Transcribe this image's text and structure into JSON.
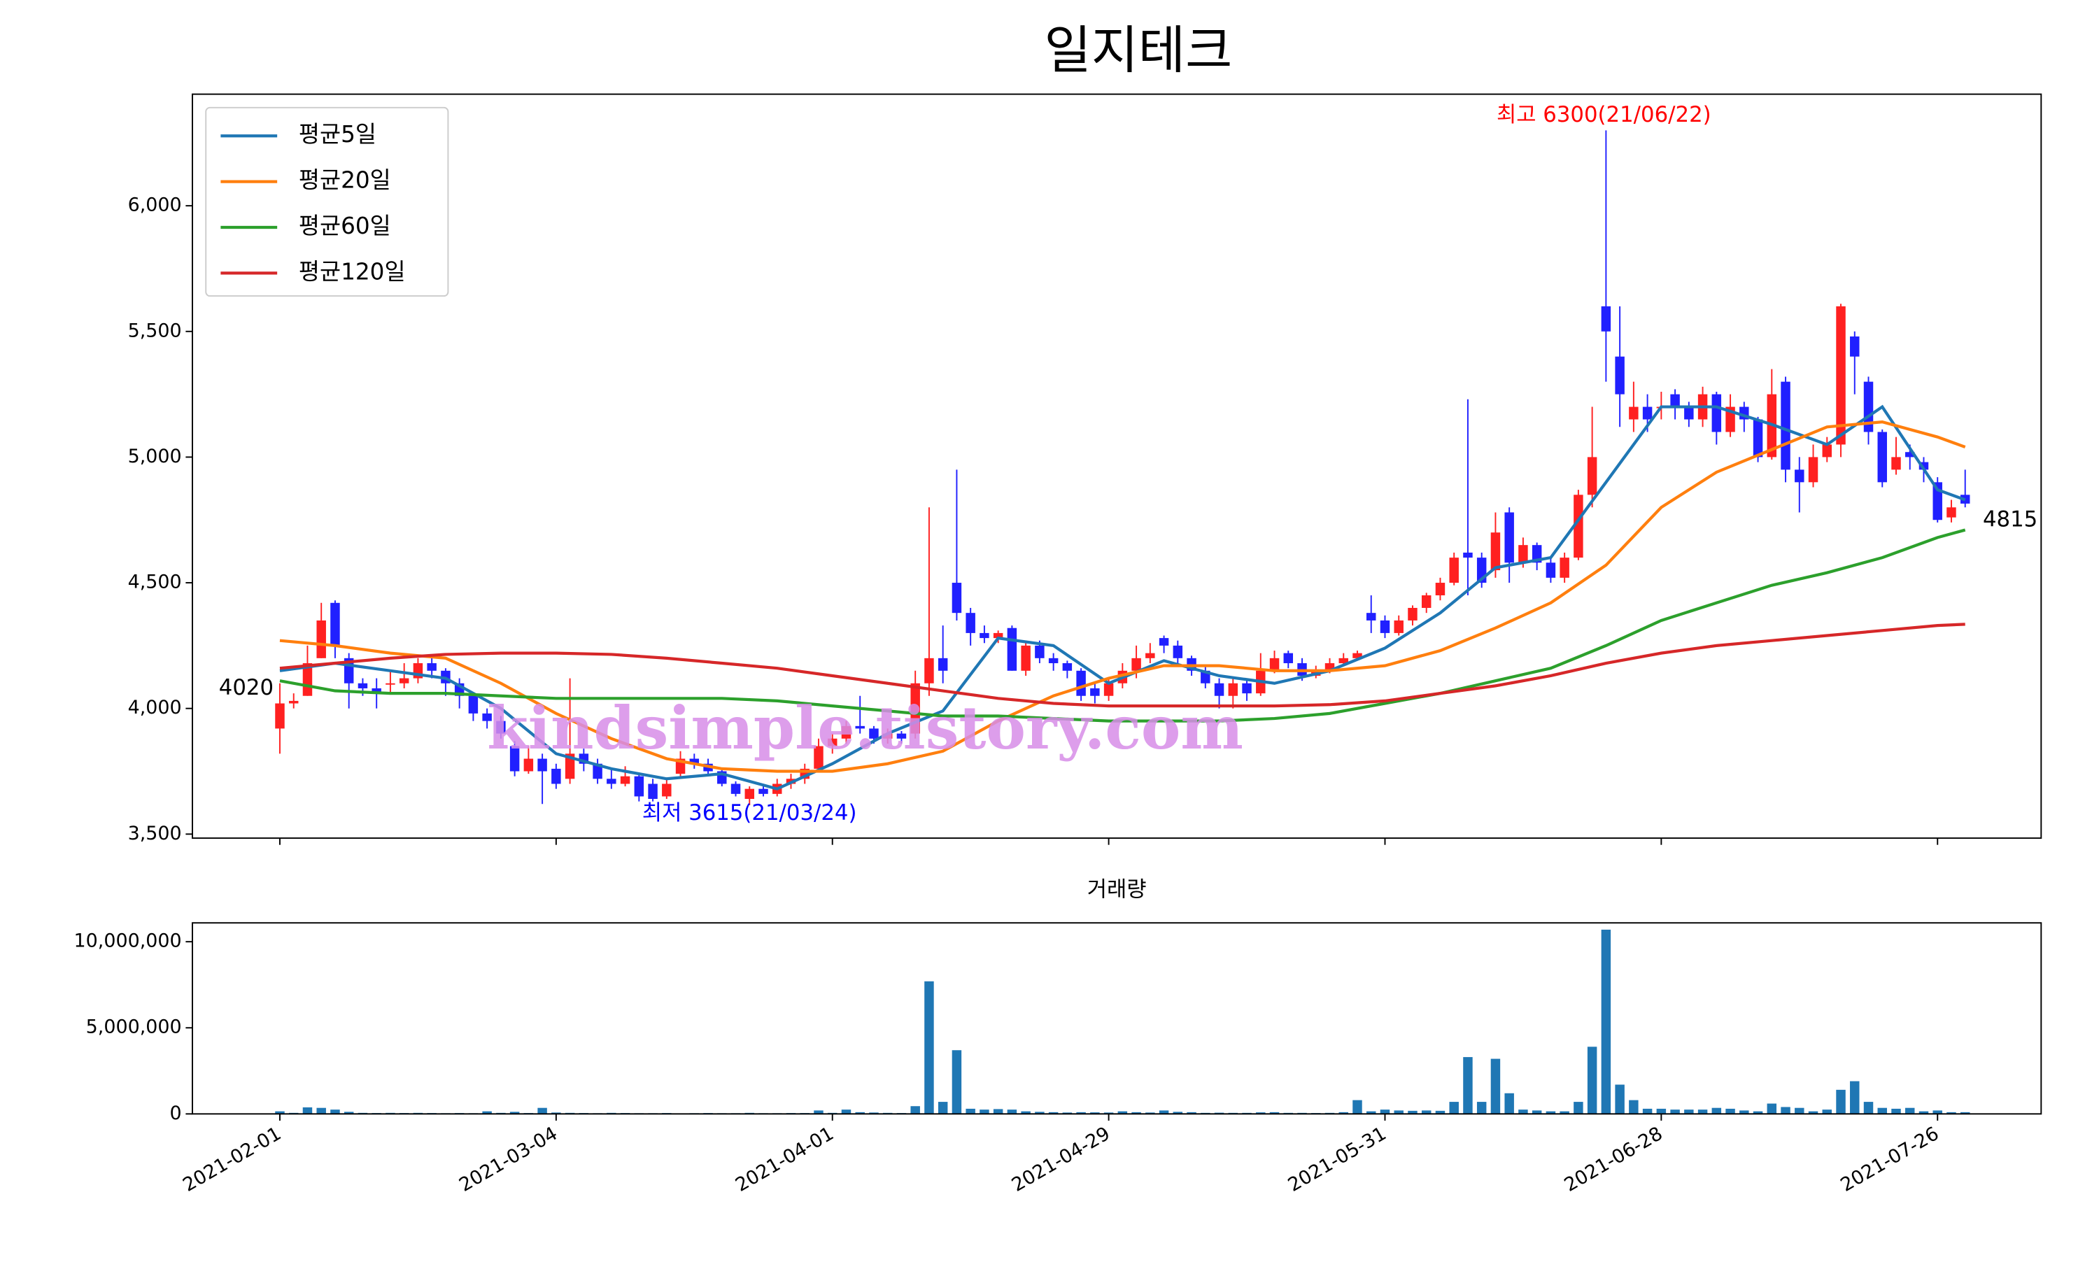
{
  "chart_data": [
    {
      "type": "candlestick",
      "title": "일지테크",
      "xlim": [
        -6.33,
        127.5
      ],
      "ylim": [
        3484,
        6444
      ],
      "yticks": [
        {
          "value": 3500,
          "label": "3,500"
        },
        {
          "value": 4000,
          "label": "4,000"
        },
        {
          "value": 4500,
          "label": "4,500"
        },
        {
          "value": 5000,
          "label": "5,000"
        },
        {
          "value": 5500,
          "label": "5,500"
        },
        {
          "value": 6000,
          "label": "6,000"
        }
      ],
      "up_color": "#ff2020",
      "down_color": "#2020ff",
      "ohlc": [
        [
          3920,
          4100,
          3820,
          4020
        ],
        [
          4020,
          4060,
          4000,
          4030
        ],
        [
          4050,
          4250,
          4050,
          4180
        ],
        [
          4200,
          4420,
          4200,
          4350
        ],
        [
          4420,
          4430,
          4200,
          4250
        ],
        [
          4200,
          4220,
          4000,
          4100
        ],
        [
          4100,
          4120,
          4050,
          4080
        ],
        [
          4080,
          4120,
          4000,
          4060
        ],
        [
          4100,
          4150,
          4060,
          4100
        ],
        [
          4100,
          4180,
          4080,
          4120
        ],
        [
          4120,
          4200,
          4100,
          4180
        ],
        [
          4180,
          4200,
          4120,
          4150
        ],
        [
          4150,
          4160,
          4050,
          4100
        ],
        [
          4100,
          4120,
          4000,
          4050
        ],
        [
          4050,
          4060,
          3950,
          3980
        ],
        [
          3980,
          4000,
          3920,
          3950
        ],
        [
          3950,
          3970,
          3880,
          3900
        ],
        [
          3850,
          3870,
          3730,
          3750
        ],
        [
          3750,
          3850,
          3740,
          3800
        ],
        [
          3800,
          3820,
          3620,
          3750
        ],
        [
          3760,
          3780,
          3680,
          3700
        ],
        [
          3720,
          4120,
          3700,
          3820
        ],
        [
          3820,
          3840,
          3750,
          3780
        ],
        [
          3780,
          3800,
          3700,
          3720
        ],
        [
          3720,
          3760,
          3680,
          3700
        ],
        [
          3700,
          3770,
          3690,
          3730
        ],
        [
          3730,
          3740,
          3630,
          3650
        ],
        [
          3700,
          3720,
          3630,
          3640
        ],
        [
          3650,
          3720,
          3640,
          3700
        ],
        [
          3740,
          3830,
          3730,
          3800
        ],
        [
          3800,
          3820,
          3760,
          3780
        ],
        [
          3780,
          3800,
          3740,
          3750
        ],
        [
          3750,
          3760,
          3690,
          3700
        ],
        [
          3700,
          3710,
          3650,
          3660
        ],
        [
          3640,
          3690,
          3615,
          3680
        ],
        [
          3680,
          3690,
          3650,
          3660
        ],
        [
          3660,
          3720,
          3650,
          3700
        ],
        [
          3700,
          3740,
          3680,
          3720
        ],
        [
          3720,
          3780,
          3700,
          3760
        ],
        [
          3760,
          3880,
          3750,
          3850
        ],
        [
          3850,
          3900,
          3820,
          3880
        ],
        [
          3880,
          3950,
          3860,
          3930
        ],
        [
          3930,
          4050,
          3900,
          3920
        ],
        [
          3920,
          3930,
          3860,
          3880
        ],
        [
          3880,
          3920,
          3860,
          3900
        ],
        [
          3900,
          3910,
          3860,
          3880
        ],
        [
          3900,
          4150,
          3880,
          4100
        ],
        [
          4100,
          4800,
          4050,
          4200
        ],
        [
          4200,
          4330,
          4100,
          4150
        ],
        [
          4500,
          4950,
          4350,
          4380
        ],
        [
          4380,
          4400,
          4250,
          4300
        ],
        [
          4300,
          4330,
          4260,
          4280
        ],
        [
          4280,
          4310,
          4260,
          4300
        ],
        [
          4320,
          4330,
          4150,
          4150
        ],
        [
          4150,
          4270,
          4130,
          4250
        ],
        [
          4250,
          4270,
          4180,
          4200
        ],
        [
          4200,
          4220,
          4150,
          4180
        ],
        [
          4180,
          4190,
          4120,
          4150
        ],
        [
          4150,
          4160,
          4030,
          4050
        ],
        [
          4080,
          4100,
          4020,
          4050
        ],
        [
          4050,
          4120,
          4030,
          4100
        ],
        [
          4100,
          4180,
          4080,
          4150
        ],
        [
          4150,
          4250,
          4120,
          4200
        ],
        [
          4200,
          4260,
          4180,
          4220
        ],
        [
          4280,
          4290,
          4220,
          4250
        ],
        [
          4250,
          4270,
          4180,
          4200
        ],
        [
          4200,
          4210,
          4130,
          4150
        ],
        [
          4150,
          4170,
          4080,
          4100
        ],
        [
          4100,
          4120,
          4000,
          4050
        ],
        [
          4050,
          4120,
          4000,
          4100
        ],
        [
          4100,
          4110,
          4030,
          4060
        ],
        [
          4060,
          4220,
          4050,
          4150
        ],
        [
          4150,
          4230,
          4140,
          4200
        ],
        [
          4220,
          4230,
          4160,
          4180
        ],
        [
          4180,
          4200,
          4110,
          4130
        ],
        [
          4130,
          4170,
          4120,
          4150
        ],
        [
          4150,
          4200,
          4140,
          4180
        ],
        [
          4180,
          4220,
          4170,
          4200
        ],
        [
          4200,
          4230,
          4190,
          4220
        ],
        [
          4380,
          4450,
          4300,
          4350
        ],
        [
          4350,
          4370,
          4280,
          4300
        ],
        [
          4300,
          4370,
          4290,
          4350
        ],
        [
          4350,
          4410,
          4330,
          4400
        ],
        [
          4400,
          4460,
          4380,
          4450
        ],
        [
          4450,
          4520,
          4430,
          4500
        ],
        [
          4500,
          4620,
          4490,
          4600
        ],
        [
          4620,
          5230,
          4450,
          4600
        ],
        [
          4600,
          4620,
          4480,
          4500
        ],
        [
          4550,
          4780,
          4520,
          4700
        ],
        [
          4780,
          4800,
          4500,
          4580
        ],
        [
          4580,
          4680,
          4560,
          4650
        ],
        [
          4650,
          4660,
          4550,
          4580
        ],
        [
          4580,
          4600,
          4500,
          4520
        ],
        [
          4520,
          4620,
          4500,
          4600
        ],
        [
          4600,
          4870,
          4590,
          4850
        ],
        [
          4850,
          5200,
          4800,
          5000
        ],
        [
          5600,
          6300,
          5300,
          5500
        ],
        [
          5400,
          5600,
          5120,
          5250
        ],
        [
          5150,
          5300,
          5100,
          5200
        ],
        [
          5200,
          5250,
          5100,
          5150
        ],
        [
          5200,
          5260,
          5150,
          5200
        ],
        [
          5250,
          5270,
          5150,
          5200
        ],
        [
          5200,
          5220,
          5120,
          5150
        ],
        [
          5150,
          5280,
          5120,
          5250
        ],
        [
          5250,
          5260,
          5050,
          5100
        ],
        [
          5100,
          5250,
          5080,
          5200
        ],
        [
          5200,
          5220,
          5100,
          5150
        ],
        [
          5150,
          5160,
          4980,
          5000
        ],
        [
          5000,
          5350,
          4990,
          5250
        ],
        [
          5300,
          5320,
          4900,
          4950
        ],
        [
          4950,
          5000,
          4780,
          4900
        ],
        [
          4900,
          5050,
          4880,
          5000
        ],
        [
          5000,
          5080,
          4980,
          5050
        ],
        [
          5050,
          5610,
          5000,
          5600
        ],
        [
          5480,
          5500,
          5250,
          5400
        ],
        [
          5300,
          5320,
          5050,
          5100
        ],
        [
          5100,
          5110,
          4880,
          4900
        ],
        [
          4950,
          5080,
          4930,
          5000
        ],
        [
          5020,
          5050,
          4950,
          5000
        ],
        [
          4980,
          5000,
          4900,
          4950
        ],
        [
          4900,
          4920,
          4740,
          4750
        ],
        [
          4760,
          4830,
          4740,
          4800
        ],
        [
          4850,
          4950,
          4800,
          4815
        ]
      ],
      "series": [
        {
          "name": "평균5일",
          "color": "#1f77b4",
          "x": [
            0,
            4,
            8,
            12,
            16,
            20,
            24,
            28,
            32,
            36,
            40,
            44,
            48,
            52,
            56,
            60,
            64,
            68,
            72,
            76,
            80,
            84,
            88,
            92,
            96,
            100,
            104,
            108,
            112,
            116,
            120,
            122
          ],
          "values": [
            4150,
            4180,
            4150,
            4120,
            4000,
            3820,
            3760,
            3720,
            3740,
            3680,
            3780,
            3900,
            3990,
            4280,
            4250,
            4100,
            4190,
            4130,
            4100,
            4150,
            4240,
            4380,
            4560,
            4600,
            4900,
            5200,
            5200,
            5130,
            5050,
            5200,
            4870,
            4830
          ]
        },
        {
          "name": "평균20일",
          "color": "#ff7f0e",
          "x": [
            0,
            4,
            8,
            12,
            16,
            20,
            24,
            28,
            32,
            36,
            40,
            44,
            48,
            52,
            56,
            60,
            64,
            68,
            72,
            76,
            80,
            84,
            88,
            92,
            96,
            100,
            104,
            108,
            112,
            116,
            120,
            122
          ],
          "values": [
            4270,
            4250,
            4220,
            4200,
            4100,
            3980,
            3880,
            3800,
            3760,
            3750,
            3750,
            3780,
            3830,
            3950,
            4050,
            4120,
            4170,
            4170,
            4150,
            4150,
            4170,
            4230,
            4320,
            4420,
            4570,
            4800,
            4940,
            5030,
            5120,
            5140,
            5080,
            5040
          ]
        },
        {
          "name": "평균60일",
          "color": "#2ca02c",
          "x": [
            0,
            4,
            8,
            12,
            16,
            20,
            24,
            28,
            32,
            36,
            40,
            44,
            48,
            52,
            56,
            60,
            64,
            68,
            72,
            76,
            80,
            84,
            88,
            92,
            96,
            100,
            104,
            108,
            112,
            116,
            120,
            122
          ],
          "values": [
            4110,
            4070,
            4060,
            4060,
            4050,
            4040,
            4040,
            4040,
            4040,
            4030,
            4010,
            3990,
            3970,
            3970,
            3960,
            3950,
            3950,
            3950,
            3960,
            3980,
            4020,
            4060,
            4110,
            4160,
            4250,
            4350,
            4420,
            4490,
            4540,
            4600,
            4680,
            4710
          ]
        },
        {
          "name": "평균120일",
          "color": "#d62728",
          "x": [
            0,
            4,
            8,
            12,
            16,
            20,
            24,
            28,
            32,
            36,
            40,
            44,
            48,
            52,
            56,
            60,
            64,
            68,
            72,
            76,
            80,
            84,
            88,
            92,
            96,
            100,
            104,
            108,
            112,
            116,
            120,
            122
          ],
          "values": [
            4160,
            4180,
            4200,
            4215,
            4220,
            4220,
            4215,
            4200,
            4180,
            4160,
            4130,
            4100,
            4070,
            4040,
            4020,
            4010,
            4010,
            4010,
            4010,
            4015,
            4030,
            4060,
            4090,
            4130,
            4180,
            4220,
            4250,
            4270,
            4290,
            4310,
            4330,
            4335
          ]
        }
      ],
      "legend": "upper left",
      "annotations": [
        "최고 6300(21/06/22)",
        "최저 3615(21/03/24)",
        "4020",
        "4815"
      ],
      "annotation_colors": [
        "#ff0000",
        "#0000ff",
        "#000000",
        "#000000"
      ],
      "watermark": "kindsimple.tistory.com"
    },
    {
      "type": "bar",
      "title": "거래량",
      "color": "#1f77b4",
      "xlim": [
        -6.33,
        127.5
      ],
      "ylim": [
        0,
        11094000
      ],
      "yticks": [
        {
          "value": 0,
          "label": "0"
        },
        {
          "value": 5000000,
          "label": "5,000,000"
        },
        {
          "value": 10000000,
          "label": "10,000,000"
        }
      ],
      "xticks": [
        {
          "value": 0,
          "label": "2021-02-01"
        },
        {
          "value": 20,
          "label": "2021-03-04"
        },
        {
          "value": 40,
          "label": "2021-04-01"
        },
        {
          "value": 60,
          "label": "2021-04-29"
        },
        {
          "value": 80,
          "label": "2021-05-31"
        },
        {
          "value": 100,
          "label": "2021-06-28"
        },
        {
          "value": 120,
          "label": "2021-07-26"
        }
      ],
      "values": [
        150000,
        60000,
        380000,
        350000,
        250000,
        120000,
        60000,
        50000,
        60000,
        50000,
        60000,
        50000,
        40000,
        50000,
        40000,
        150000,
        60000,
        120000,
        50000,
        350000,
        80000,
        60000,
        50000,
        40000,
        60000,
        50000,
        40000,
        40000,
        50000,
        30000,
        40000,
        50000,
        40000,
        40000,
        60000,
        40000,
        40000,
        50000,
        50000,
        200000,
        60000,
        250000,
        100000,
        80000,
        60000,
        50000,
        450000,
        7700000,
        700000,
        3700000,
        300000,
        250000,
        280000,
        250000,
        150000,
        120000,
        100000,
        80000,
        100000,
        90000,
        80000,
        150000,
        100000,
        80000,
        200000,
        120000,
        100000,
        60000,
        70000,
        60000,
        60000,
        90000,
        100000,
        60000,
        60000,
        50000,
        60000,
        100000,
        800000,
        150000,
        250000,
        200000,
        180000,
        200000,
        180000,
        700000,
        3300000,
        700000,
        3200000,
        1200000,
        250000,
        200000,
        150000,
        150000,
        700000,
        3900000,
        10700000,
        1700000,
        800000,
        300000,
        300000,
        250000,
        250000,
        250000,
        350000,
        300000,
        200000,
        150000,
        600000,
        400000,
        350000,
        150000,
        250000,
        1400000,
        1900000,
        700000,
        350000,
        300000,
        350000,
        150000,
        200000,
        100000,
        100000
      ]
    }
  ]
}
